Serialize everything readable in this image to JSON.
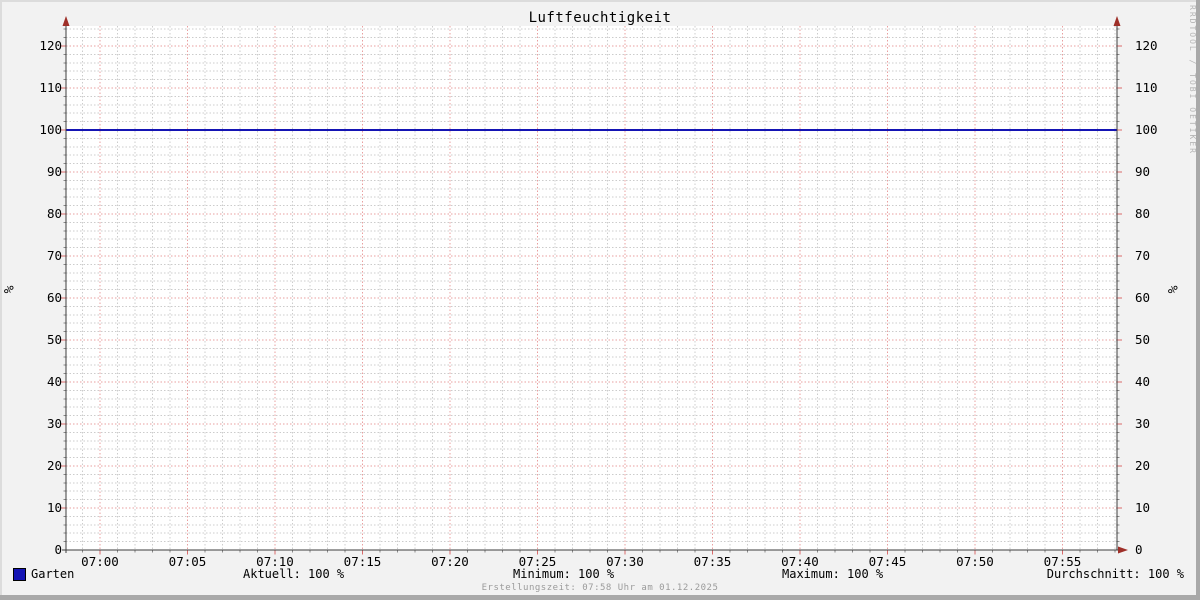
{
  "chart_data": {
    "type": "line",
    "title": "Luftfeuchtigkeit",
    "ylabel": "%",
    "xlabel": "",
    "x_start": "06:58",
    "x_end": "07:58",
    "x_tick_labels": [
      "07:00",
      "07:05",
      "07:10",
      "07:15",
      "07:20",
      "07:25",
      "07:30",
      "07:35",
      "07:40",
      "07:45",
      "07:50",
      "07:55"
    ],
    "x_major_step_minutes": 5,
    "x_minor_step_minutes": 1,
    "y_tick_values": [
      0,
      10,
      20,
      30,
      40,
      50,
      60,
      70,
      80,
      90,
      100,
      110,
      120
    ],
    "ylim": [
      0,
      124.5
    ],
    "y_major_step": 10,
    "y_minor_step": 2,
    "grid": "on",
    "legend_position": "bottom",
    "series": [
      {
        "name": "Garten",
        "color": "#1414b4",
        "constant_value": 100
      }
    ],
    "stats": {
      "aktuell": "Aktuell: 100 %",
      "minimum": "Minimum: 100 %",
      "maximum": "Maximum: 100 %",
      "durchschnitt": "Durchschnitt: 100 %"
    },
    "footer": "Erstellungszeit: 07:58 Uhr am 01.12.2025",
    "watermark": "RRDTOOL / TOBI OETIKER",
    "colors": {
      "background": "#f2f2f2",
      "canvas": "#ffffff",
      "major_grid": "#e89f9f",
      "minor_grid": "#cccccc",
      "axis": "#3d3d3d",
      "arrow": "#9e2f28",
      "minor_tick": "#8a8a8a",
      "line": "#1414b4",
      "footer_text": "#9b9b9b",
      "watermark_text": "#b5b5b5"
    }
  }
}
